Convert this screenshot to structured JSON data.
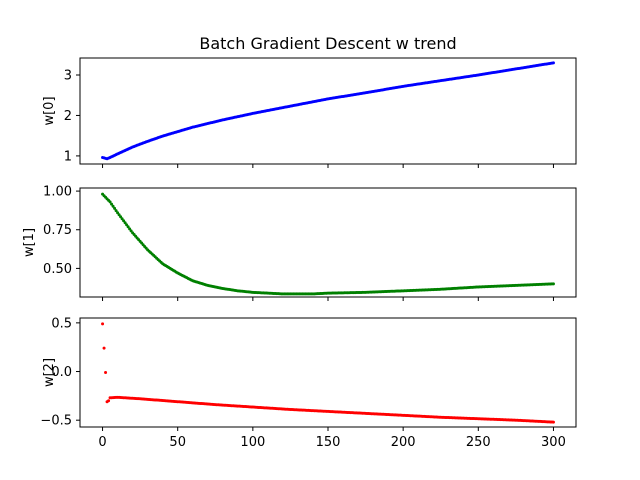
{
  "chart_data": {
    "title": "Batch Gradient Descent w trend",
    "type": "scatter",
    "x_range": [
      0,
      300
    ],
    "xlim": [
      -15,
      315
    ],
    "x_ticks": [
      0,
      50,
      100,
      150,
      200,
      250,
      300
    ],
    "x_tick_labels": [
      "0",
      "50",
      "100",
      "150",
      "200",
      "250",
      "300"
    ],
    "grid": false,
    "panels": [
      {
        "ylabel": "w[0]",
        "color": "#0000ff",
        "ylim": [
          0.8,
          3.42
        ],
        "y_ticks": [
          1,
          2,
          3
        ],
        "y_tick_labels": [
          "1",
          "2",
          "3"
        ],
        "points": [
          [
            0,
            0.96
          ],
          [
            1,
            0.95
          ],
          [
            2,
            0.94
          ],
          [
            3,
            0.93
          ],
          [
            5,
            0.96
          ],
          [
            10,
            1.05
          ],
          [
            20,
            1.22
          ],
          [
            30,
            1.36
          ],
          [
            40,
            1.49
          ],
          [
            50,
            1.6
          ],
          [
            60,
            1.71
          ],
          [
            70,
            1.8
          ],
          [
            80,
            1.89
          ],
          [
            90,
            1.97
          ],
          [
            100,
            2.05
          ],
          [
            125,
            2.23
          ],
          [
            150,
            2.41
          ],
          [
            175,
            2.56
          ],
          [
            200,
            2.72
          ],
          [
            225,
            2.86
          ],
          [
            250,
            3.0
          ],
          [
            275,
            3.15
          ],
          [
            300,
            3.3
          ]
        ]
      },
      {
        "ylabel": "w[1]",
        "color": "#008000",
        "ylim": [
          0.315,
          1.02
        ],
        "y_ticks": [
          0.5,
          0.75,
          1.0
        ],
        "y_tick_labels": [
          "0.50",
          "0.75",
          "1.00"
        ],
        "points": [
          [
            0,
            0.98
          ],
          [
            5,
            0.93
          ],
          [
            10,
            0.86
          ],
          [
            20,
            0.73
          ],
          [
            30,
            0.62
          ],
          [
            40,
            0.53
          ],
          [
            50,
            0.47
          ],
          [
            60,
            0.42
          ],
          [
            70,
            0.39
          ],
          [
            80,
            0.37
          ],
          [
            90,
            0.355
          ],
          [
            100,
            0.345
          ],
          [
            110,
            0.34
          ],
          [
            120,
            0.335
          ],
          [
            130,
            0.335
          ],
          [
            140,
            0.335
          ],
          [
            150,
            0.34
          ],
          [
            175,
            0.345
          ],
          [
            200,
            0.355
          ],
          [
            225,
            0.365
          ],
          [
            250,
            0.38
          ],
          [
            275,
            0.39
          ],
          [
            300,
            0.4
          ]
        ]
      },
      {
        "ylabel": "w[2]",
        "color": "#ff0000",
        "ylim": [
          -0.57,
          0.55
        ],
        "y_ticks": [
          0.5,
          0.0,
          -0.5
        ],
        "y_tick_labels": [
          "0.5",
          "0.0",
          "−0.5"
        ],
        "points": [
          [
            0,
            0.49
          ],
          [
            2,
            -0.01
          ],
          [
            3,
            -0.31
          ],
          [
            4,
            -0.3
          ],
          [
            5,
            -0.27
          ],
          [
            10,
            -0.265
          ],
          [
            25,
            -0.28
          ],
          [
            50,
            -0.31
          ],
          [
            75,
            -0.34
          ],
          [
            100,
            -0.365
          ],
          [
            125,
            -0.39
          ],
          [
            150,
            -0.41
          ],
          [
            175,
            -0.43
          ],
          [
            200,
            -0.45
          ],
          [
            225,
            -0.47
          ],
          [
            250,
            -0.485
          ],
          [
            275,
            -0.5
          ],
          [
            300,
            -0.52
          ]
        ]
      }
    ]
  }
}
